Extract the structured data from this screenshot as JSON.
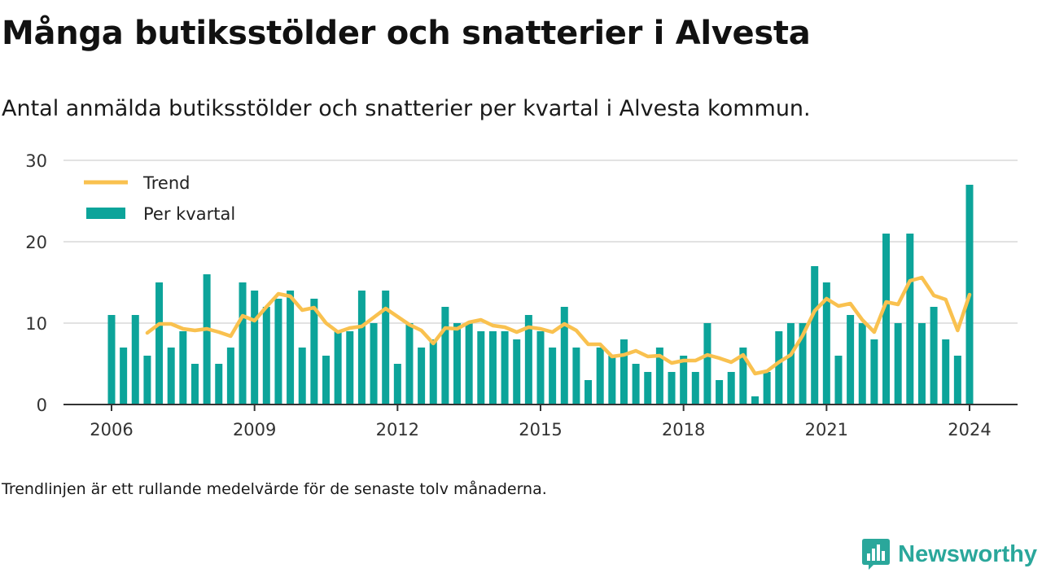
{
  "header": {
    "title": "Många butiksstölder och snatterier i Alvesta",
    "subtitle": "Antal anmälda butiksstölder och snatterier per kvartal i Alvesta kommun."
  },
  "footer": {
    "note": "Trendlinjen är ett rullande medelvärde för de senaste tolv månaderna.",
    "brand": "Newsworthy"
  },
  "colors": {
    "bars": "#0ca49a",
    "trend": "#f9c14f",
    "grid": "#d9d9d9",
    "axis": "#333333",
    "brand": "#2aa79b"
  },
  "chart_data": {
    "type": "bar",
    "x_start": "2006-Q1",
    "x_end": "2024-Q1",
    "xticks": [
      "2006",
      "2009",
      "2012",
      "2015",
      "2018",
      "2021",
      "2024"
    ],
    "yticks": [
      "0",
      "10",
      "20",
      "30"
    ],
    "ylim": [
      0,
      30
    ],
    "legend_position": "top-left",
    "grid": true,
    "series": [
      {
        "name": "Per kvartal",
        "type": "bar",
        "values": [
          11,
          7,
          11,
          6,
          15,
          7,
          9,
          5,
          16,
          5,
          7,
          15,
          14,
          12,
          13,
          14,
          7,
          13,
          6,
          9,
          9,
          14,
          10,
          14,
          5,
          10,
          7,
          8,
          12,
          10,
          10,
          9,
          9,
          9,
          8,
          11,
          9,
          7,
          12,
          7,
          3,
          7,
          6,
          8,
          5,
          4,
          7,
          4,
          6,
          4,
          10,
          3,
          4,
          7,
          1,
          4,
          9,
          10,
          10,
          17,
          15,
          6,
          11,
          10,
          8,
          21,
          10,
          21,
          10,
          12,
          8,
          6,
          27
        ]
      },
      {
        "name": "Trend",
        "type": "line",
        "values": [
          null,
          null,
          null,
          8.8,
          9.9,
          9.9,
          9.3,
          9.1,
          9.3,
          8.9,
          8.4,
          10.9,
          10.3,
          12,
          13.6,
          13.3,
          11.6,
          11.9,
          10,
          8.9,
          9.4,
          9.6,
          10.7,
          11.8,
          10.8,
          9.8,
          9.1,
          7.5,
          9.4,
          9.3,
          10.1,
          10.4,
          9.7,
          9.5,
          8.9,
          9.5,
          9.3,
          8.9,
          9.9,
          9.1,
          7.4,
          7.4,
          5.9,
          6.1,
          6.6,
          5.9,
          6,
          5.1,
          5.4,
          5.4,
          6.1,
          5.7,
          5.2,
          6.1,
          3.8,
          4.1,
          5.2,
          6.1,
          8.5,
          11.5,
          13,
          12.1,
          12.4,
          10.4,
          8.9,
          12.6,
          12.3,
          15.2,
          15.6,
          13.4,
          12.9,
          9.1,
          13.5
        ]
      }
    ]
  }
}
